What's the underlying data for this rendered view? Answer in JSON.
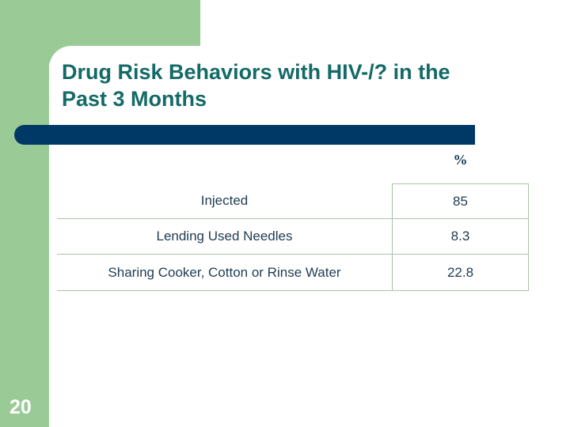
{
  "slide": {
    "title_line1": "Drug Risk Behaviors with HIV-/? in the",
    "title_line2": "Past 3 Months",
    "page_number": "20",
    "colors": {
      "accent_green": "#9acb97",
      "bar_navy": "#003866",
      "title_teal": "#136a67",
      "table_text_navy": "#1e3c52",
      "table_border_green": "#a9c2a9"
    },
    "table": {
      "value_header": "%",
      "rows": [
        {
          "label": "Injected",
          "value": "85"
        },
        {
          "label": "Lending Used Needles",
          "value": "8.3"
        },
        {
          "label": "Sharing Cooker, Cotton or Rinse Water",
          "value": "22.8"
        }
      ]
    }
  },
  "chart_data": {
    "type": "table",
    "title": "Drug Risk Behaviors with HIV-/? in the Past 3 Months",
    "categories": [
      "Injected",
      "Lending Used Needles",
      "Sharing Cooker, Cotton or Rinse Water"
    ],
    "values": [
      85,
      8.3,
      22.8
    ],
    "ylabel": "%"
  }
}
